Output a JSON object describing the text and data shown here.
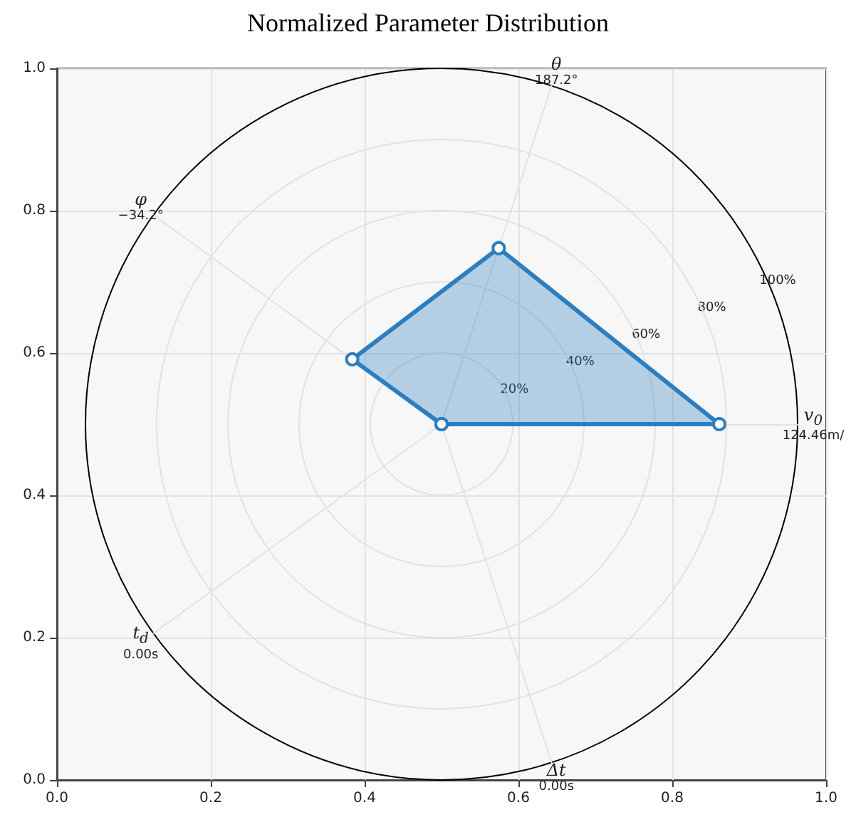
{
  "chart_data": [
    {
      "type": "scatter",
      "title": "Normalized Parameter Distribution",
      "grid": true,
      "marker": "none",
      "xlim": [
        0,
        1
      ],
      "xticks": [
        {
          "value": 0,
          "label": "0.0"
        },
        {
          "value": 0.2,
          "label": "0.2"
        },
        {
          "value": 0.4,
          "label": "0.4"
        },
        {
          "value": 0.6,
          "label": "0.6"
        },
        {
          "value": 0.8,
          "label": "0.8"
        },
        {
          "value": 1,
          "label": "1.0"
        }
      ],
      "ylim": [
        0,
        1
      ],
      "yticks": [
        {
          "value": 0,
          "label": "0.0"
        },
        {
          "value": 0.2,
          "label": "0.2"
        },
        {
          "value": 0.4,
          "label": "0.4"
        },
        {
          "value": 0.6,
          "label": "0.6"
        },
        {
          "value": 0.8,
          "label": "0.8"
        },
        {
          "value": 1,
          "label": "1.0"
        }
      ]
    },
    {
      "type": "radar",
      "categories": [
        "θ\n187.2°",
        "v$_{0}$\n124.46m/",
        "Δt\n0.00s",
        "t$_{d}$\n0.00s",
        "φ\n−34.2°"
      ],
      "series": [
        {
          "color": "#2e7ebf",
          "values": [
            52,
            78,
            0,
            0,
            31
          ]
        }
      ],
      "ylim": [
        0,
        100
      ],
      "yticks": [
        {
          "value": 20,
          "label": "20%"
        },
        {
          "value": 40,
          "label": "40%"
        },
        {
          "value": 60,
          "label": "60%"
        },
        {
          "value": 80,
          "label": "80%"
        },
        {
          "value": 100,
          "label": "100%"
        }
      ],
      "grid": true,
      "marker": "circle"
    }
  ]
}
